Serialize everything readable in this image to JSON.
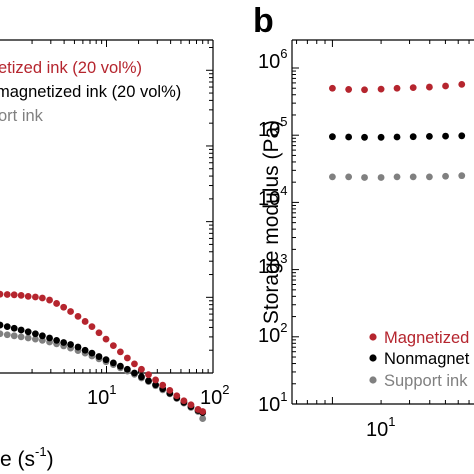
{
  "colors": {
    "magnetized": "#b5252e",
    "nonmagnetized": "#000000",
    "support": "#808080"
  },
  "chart_data": [
    {
      "type": "scatter",
      "panel": "a",
      "title": "",
      "xlabel": "Shear rate (s-1)",
      "ylabel": "",
      "x_scale": "log",
      "xlim": [
        1,
        100
      ],
      "y_scale": "log",
      "ylim_log10": [
        -1,
        3.4
      ],
      "x_tick_labels": [
        {
          "value": 10,
          "base": "10",
          "exp": "1"
        },
        {
          "value": 100,
          "base": "10",
          "exp": "2"
        }
      ],
      "x_label_parts": {
        "text": "e (s",
        "exp": "-1",
        "close": ")"
      },
      "legend_location": "top-left",
      "series": [
        {
          "name": "Magnetized ink (20 vol%)",
          "legend_visible": "etized ink (20 vol%)",
          "color": "#b5252e",
          "x": [
            1.0,
            1.17,
            1.36,
            1.58,
            1.84,
            2.15,
            2.5,
            2.92,
            3.4,
            3.96,
            4.6,
            5.4,
            6.3,
            7.3,
            8.5,
            9.9,
            11.6,
            13.5,
            15.7,
            18.3,
            21.3,
            24.8,
            28.9,
            33.7,
            39.3,
            45.7,
            53.3,
            62.1,
            72.4,
            80
          ],
          "y": [
            1.1,
            1.09,
            1.08,
            1.06,
            1.03,
            1.01,
            0.98,
            0.92,
            0.83,
            0.74,
            0.65,
            0.56,
            0.48,
            0.41,
            0.34,
            0.28,
            0.23,
            0.19,
            0.158,
            0.132,
            0.112,
            0.095,
            0.081,
            0.069,
            0.059,
            0.05,
            0.043,
            0.038,
            0.033,
            0.031
          ]
        },
        {
          "name": "Nonmagnetized ink (20 vol%)",
          "legend_visible": "magnetized ink (20 vol%)",
          "color": "#000000",
          "x": [
            1.0,
            1.17,
            1.36,
            1.58,
            1.84,
            2.15,
            2.5,
            2.92,
            3.4,
            3.96,
            4.6,
            5.4,
            6.3,
            7.3,
            8.5,
            9.9,
            11.6,
            13.5,
            15.7,
            18.3,
            21.3,
            24.8,
            28.9,
            33.7,
            39.3,
            45.7,
            53.3,
            62.1,
            72.4,
            80
          ],
          "y": [
            0.43,
            0.41,
            0.39,
            0.37,
            0.35,
            0.33,
            0.31,
            0.29,
            0.27,
            0.253,
            0.238,
            0.22,
            0.2,
            0.183,
            0.165,
            0.15,
            0.136,
            0.123,
            0.112,
            0.1,
            0.089,
            0.079,
            0.07,
            0.062,
            0.054,
            0.047,
            0.041,
            0.036,
            0.032,
            0.03
          ]
        },
        {
          "name": "Support ink",
          "legend_visible": "ort ink",
          "color": "#808080",
          "x": [
            1.0,
            1.17,
            1.36,
            1.58,
            1.84,
            2.15,
            2.5,
            2.92,
            3.4,
            3.96,
            4.6,
            5.4,
            6.3,
            7.3,
            8.5,
            9.9,
            11.6,
            13.5,
            15.7,
            18.3,
            21.3,
            24.8,
            28.9,
            33.7,
            39.3,
            45.7,
            53.3,
            62.1,
            72.4,
            80
          ],
          "y": [
            0.33,
            0.32,
            0.31,
            0.3,
            0.29,
            0.28,
            0.27,
            0.257,
            0.243,
            0.228,
            0.213,
            0.198,
            0.183,
            0.168,
            0.154,
            0.141,
            0.129,
            0.117,
            0.106,
            0.096,
            0.086,
            0.077,
            0.068,
            0.06,
            0.053,
            0.046,
            0.04,
            0.035,
            0.031,
            0.025
          ]
        }
      ]
    },
    {
      "type": "scatter",
      "panel": "b",
      "title": "",
      "xlabel": "",
      "ylabel": "Storage modulus (Pa)",
      "x_scale": "log",
      "xlim_log10": [
        0.75,
        1.95
      ],
      "y_scale": "log",
      "ylim": [
        10,
        1000000
      ],
      "y_tick_labels": [
        {
          "value": 10,
          "base": "10",
          "exp": "1"
        },
        {
          "value": 100,
          "base": "10",
          "exp": "2"
        },
        {
          "value": 1000,
          "base": "10",
          "exp": "3"
        },
        {
          "value": 10000,
          "base": "10",
          "exp": "4"
        },
        {
          "value": 100000,
          "base": "10",
          "exp": "5"
        },
        {
          "value": 1000000,
          "base": "10",
          "exp": "6"
        }
      ],
      "x_tick_labels": [
        {
          "value": 10,
          "base": "10",
          "exp": "1"
        }
      ],
      "legend_location": "bottom-right",
      "series": [
        {
          "name": "Magnetized ink (20 vol%)",
          "legend_visible": "Magnetized",
          "color": "#b5252e",
          "x": [
            10,
            12.6,
            15.8,
            20,
            25.1,
            31.6,
            39.8,
            50.1,
            63.1,
            79.4
          ],
          "y": [
            500000,
            480000,
            475000,
            485000,
            500000,
            510000,
            520000,
            540000,
            570000,
            620000
          ]
        },
        {
          "name": "Nonmagnetized ink (20 vol%)",
          "legend_visible": "Nonmagnet",
          "color": "#000000",
          "x": [
            10,
            12.6,
            15.8,
            20,
            25.1,
            31.6,
            39.8,
            50.1,
            63.1,
            79.4
          ],
          "y": [
            95000,
            94000,
            93000,
            93000,
            94000,
            95000,
            96000,
            97000,
            98000,
            100000
          ]
        },
        {
          "name": "Support ink",
          "legend_visible": "Support ink",
          "color": "#808080",
          "x": [
            10,
            12.6,
            15.8,
            20,
            25.1,
            31.6,
            39.8,
            50.1,
            63.1,
            79.4
          ],
          "y": [
            24000,
            24000,
            23500,
            23500,
            24000,
            24000,
            24000,
            24500,
            25000,
            25000
          ]
        }
      ]
    }
  ],
  "panel_b_letter": "b"
}
